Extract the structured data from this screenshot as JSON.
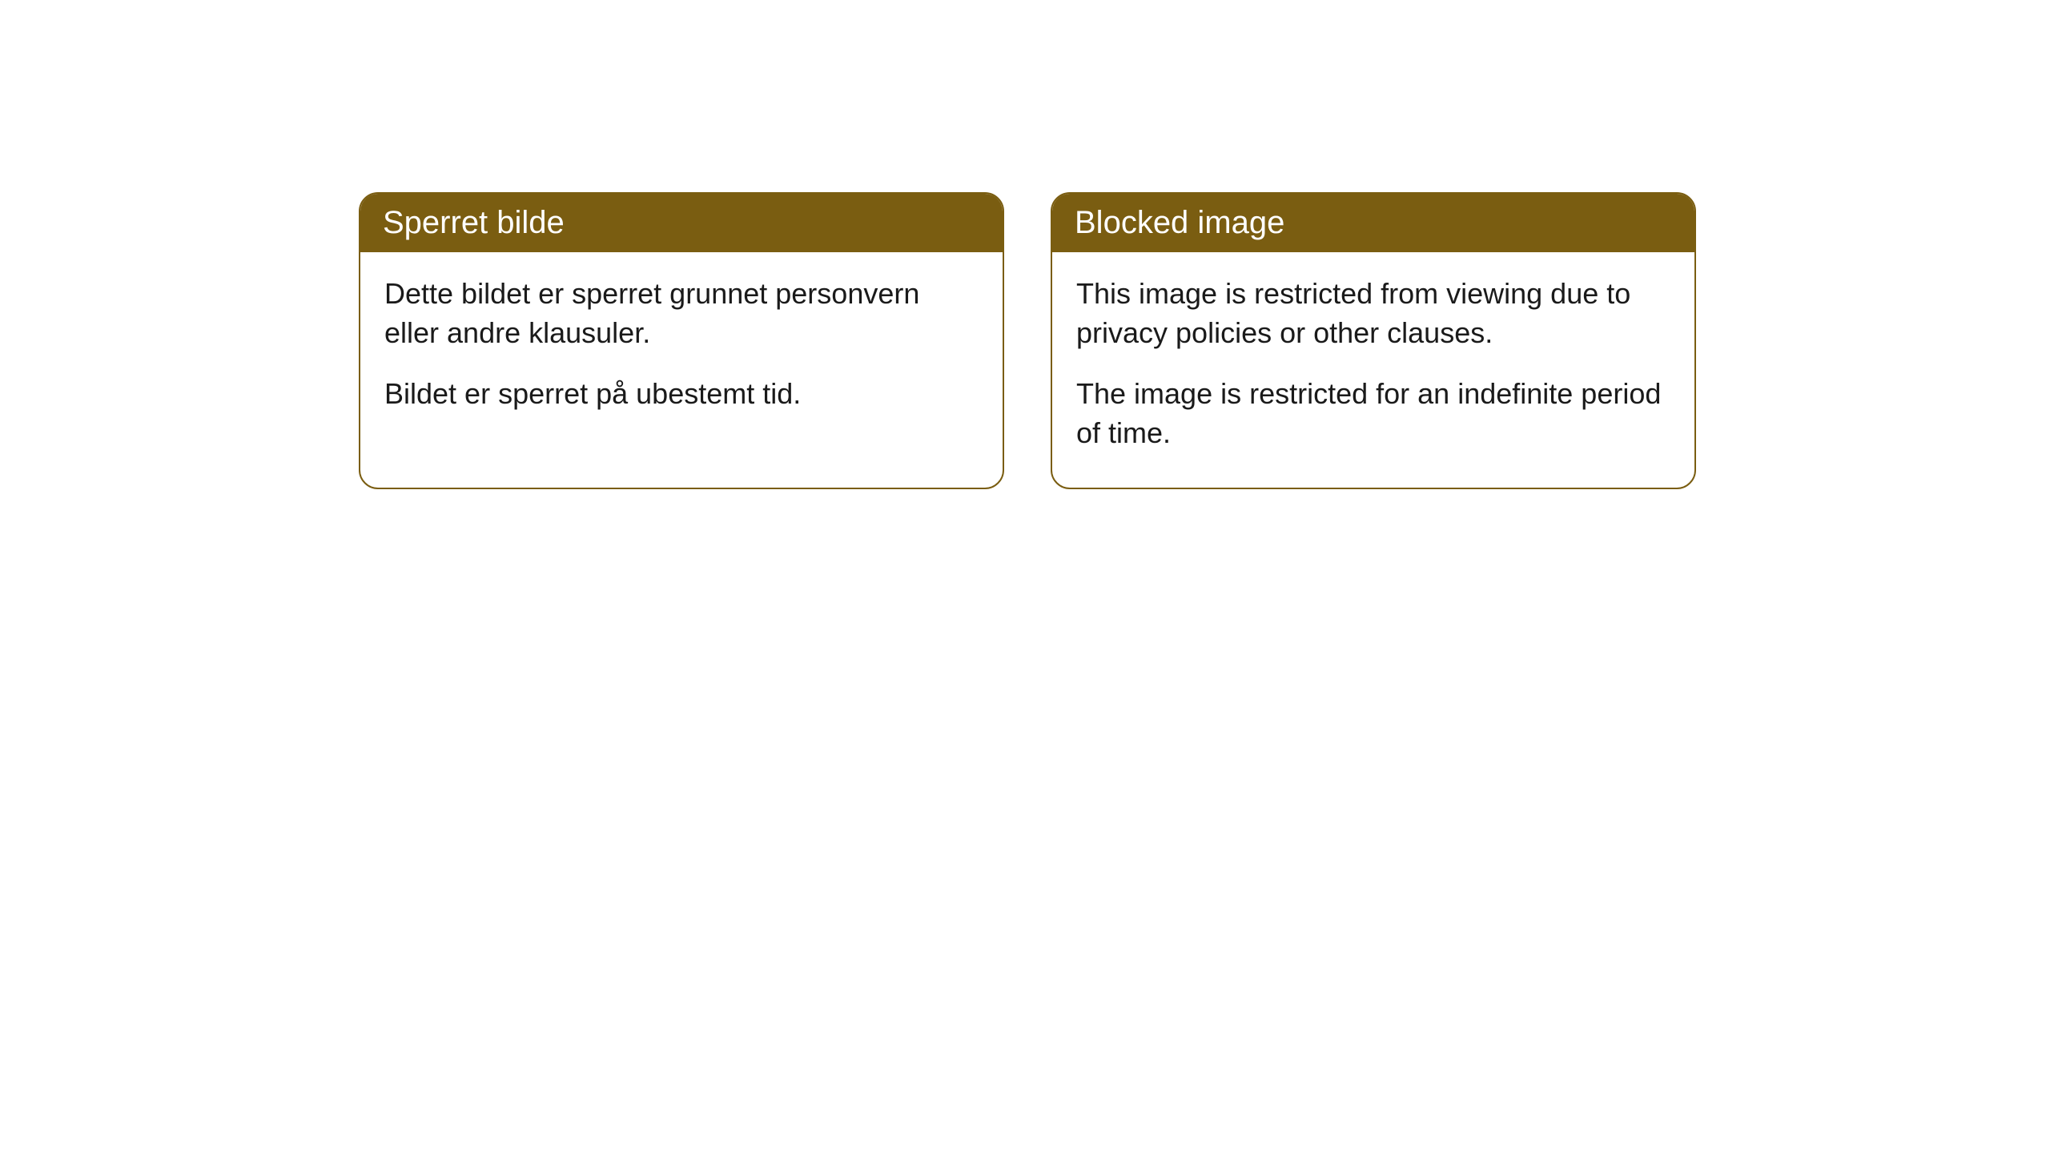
{
  "cards": [
    {
      "title": "Sperret bilde",
      "body_line1": "Dette bildet er sperret grunnet personvern eller andre klausuler.",
      "body_line2": "Bildet er sperret på ubestemt tid."
    },
    {
      "title": "Blocked image",
      "body_line1": "This image is restricted from viewing due to privacy policies or other clauses.",
      "body_line2": "The image is restricted for an indefinite period of time."
    }
  ],
  "styling": {
    "header_bg": "#7a5d11",
    "header_text_color": "#ffffff",
    "border_color": "#7a5d11",
    "body_bg": "#ffffff",
    "body_text_color": "#1a1a1a",
    "border_radius": 24,
    "header_fontsize": 40,
    "body_fontsize": 36
  }
}
